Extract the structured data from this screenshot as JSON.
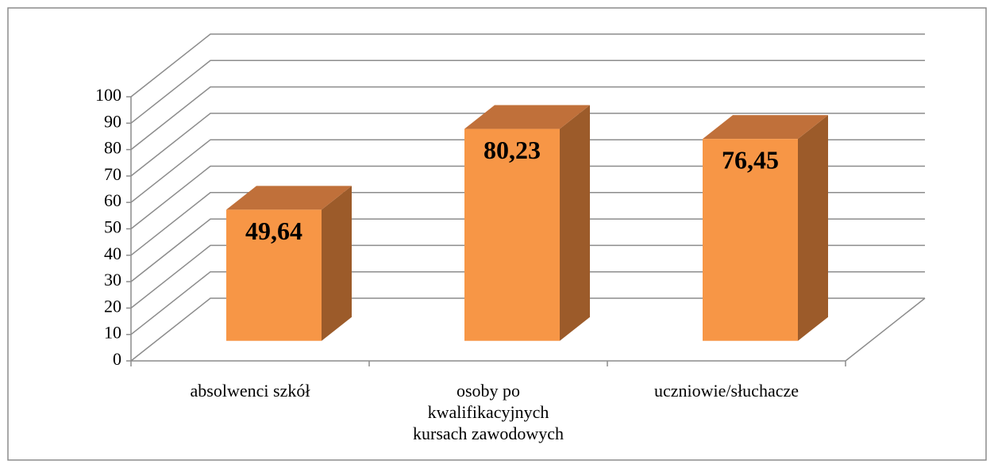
{
  "chart_data": {
    "type": "bar3d",
    "categories": [
      "absolwenci szkół",
      "osoby po kwalifikacyjnych kursach zawodowych",
      "uczniowie/słuchacze"
    ],
    "values": [
      49.64,
      80.23,
      76.45
    ],
    "value_labels": [
      "49,64",
      "80,23",
      "76,45"
    ],
    "color": "#f79646",
    "ylim": [
      0,
      100
    ],
    "yticks": [
      0,
      10,
      20,
      30,
      40,
      50,
      60,
      70,
      80,
      90,
      100
    ],
    "grid": true
  }
}
